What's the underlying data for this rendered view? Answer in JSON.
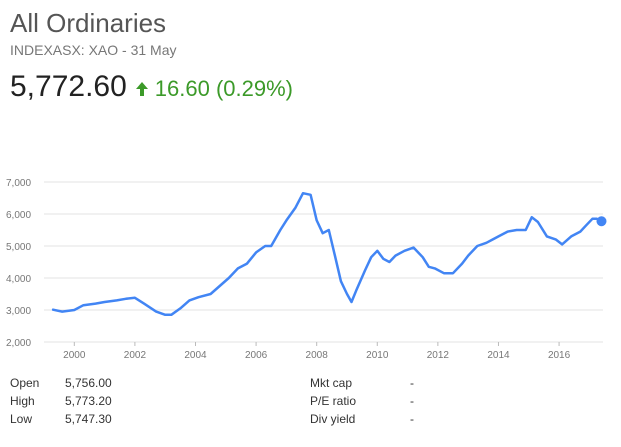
{
  "header": {
    "title": "All Ordinaries",
    "subtitle": "INDEXASX: XAO - 31 May",
    "price": "5,772.60",
    "change": "16.60 (0.29%)",
    "change_color": "#3c9a29",
    "change_icon": "up-arrow-icon"
  },
  "chart_data": {
    "type": "line",
    "title": "",
    "xlabel": "",
    "ylabel": "",
    "grid": true,
    "line_color": "#4285f4",
    "xlim": [
      1999.0,
      2017.45
    ],
    "ylim": [
      2000,
      7000
    ],
    "y_ticks": [
      "2,000",
      "3,000",
      "4,000",
      "5,000",
      "6,000",
      "7,000"
    ],
    "y_tick_values": [
      2000,
      3000,
      4000,
      5000,
      6000,
      7000
    ],
    "x_ticks": [
      "2000",
      "2002",
      "2004",
      "2006",
      "2008",
      "2010",
      "2012",
      "2014",
      "2016"
    ],
    "x_tick_values": [
      2000,
      2002,
      2004,
      2006,
      2008,
      2010,
      2012,
      2014,
      2016
    ],
    "series": [
      {
        "x": [
          1999.3,
          1999.6,
          2000.0,
          2000.3,
          2000.7,
          2001.0,
          2001.4,
          2001.7,
          2002.0,
          2002.3,
          2002.7,
          2003.0,
          2003.2,
          2003.5,
          2003.8,
          2004.1,
          2004.5,
          2004.8,
          2005.1,
          2005.4,
          2005.7,
          2006.0,
          2006.3,
          2006.5,
          2006.8,
          2007.0,
          2007.3,
          2007.55,
          2007.8,
          2008.0,
          2008.2,
          2008.4,
          2008.6,
          2008.8,
          2009.0,
          2009.15,
          2009.3,
          2009.6,
          2009.8,
          2010.0,
          2010.2,
          2010.4,
          2010.6,
          2010.9,
          2011.2,
          2011.5,
          2011.7,
          2011.9,
          2012.2,
          2012.5,
          2012.8,
          2013.0,
          2013.3,
          2013.6,
          2013.8,
          2014.0,
          2014.3,
          2014.6,
          2014.9,
          2015.1,
          2015.3,
          2015.6,
          2015.9,
          2016.1,
          2016.4,
          2016.7,
          2016.9,
          2017.1,
          2017.25,
          2017.4
        ],
        "values": [
          3010,
          2950,
          3000,
          3150,
          3200,
          3250,
          3300,
          3350,
          3380,
          3200,
          2950,
          2850,
          2850,
          3050,
          3300,
          3400,
          3500,
          3750,
          4000,
          4300,
          4450,
          4800,
          5000,
          5000,
          5500,
          5800,
          6200,
          6650,
          6600,
          5800,
          5400,
          5500,
          4700,
          3900,
          3500,
          3250,
          3600,
          4250,
          4650,
          4850,
          4600,
          4500,
          4700,
          4850,
          4950,
          4650,
          4350,
          4300,
          4150,
          4150,
          4450,
          4700,
          5000,
          5100,
          5200,
          5300,
          5450,
          5500,
          5500,
          5900,
          5750,
          5300,
          5200,
          5050,
          5300,
          5450,
          5650,
          5850,
          5850,
          5772.6
        ]
      }
    ]
  },
  "stats": [
    {
      "label": "Open",
      "value": "5,756.00"
    },
    {
      "label": "High",
      "value": "5,773.20"
    },
    {
      "label": "Low",
      "value": "5,747.30"
    },
    {
      "label": "Mkt cap",
      "value": "-"
    },
    {
      "label": "P/E ratio",
      "value": "-"
    },
    {
      "label": "Div yield",
      "value": "-"
    }
  ]
}
